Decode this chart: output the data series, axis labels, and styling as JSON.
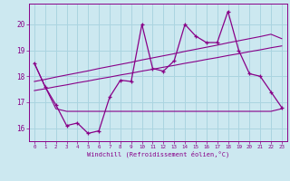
{
  "xlabel": "Windchill (Refroidissement éolien,°C)",
  "background_color": "#cce8f0",
  "grid_color": "#aad4e0",
  "line_color": "#880088",
  "x": [
    0,
    1,
    2,
    3,
    4,
    5,
    6,
    7,
    8,
    9,
    10,
    11,
    12,
    13,
    14,
    15,
    16,
    17,
    18,
    19,
    20,
    21,
    22,
    23
  ],
  "y_main": [
    18.5,
    17.6,
    16.9,
    16.1,
    16.2,
    15.8,
    15.9,
    17.2,
    17.85,
    17.8,
    20.0,
    18.3,
    18.2,
    18.6,
    20.0,
    19.55,
    19.3,
    19.3,
    20.5,
    19.0,
    18.1,
    18.0,
    17.4,
    16.8
  ],
  "y_flat": [
    18.5,
    17.6,
    16.75,
    16.65,
    16.65,
    16.65,
    16.65,
    16.65,
    16.65,
    16.65,
    16.65,
    16.65,
    16.65,
    16.65,
    16.65,
    16.65,
    16.65,
    16.65,
    16.65,
    16.65,
    16.65,
    16.65,
    16.65,
    16.75
  ],
  "y_trend_low": [
    17.45,
    17.52,
    17.6,
    17.67,
    17.75,
    17.82,
    17.9,
    17.97,
    18.05,
    18.12,
    18.2,
    18.27,
    18.35,
    18.42,
    18.5,
    18.57,
    18.65,
    18.72,
    18.8,
    18.87,
    18.95,
    19.02,
    19.1,
    19.17
  ],
  "y_trend_high": [
    17.8,
    17.88,
    17.97,
    18.05,
    18.13,
    18.21,
    18.3,
    18.38,
    18.46,
    18.54,
    18.63,
    18.71,
    18.79,
    18.87,
    18.96,
    19.04,
    19.12,
    19.2,
    19.29,
    19.37,
    19.45,
    19.53,
    19.62,
    19.45
  ],
  "ylim": [
    15.5,
    20.8
  ],
  "yticks": [
    16,
    17,
    18,
    19,
    20
  ],
  "xticks": [
    0,
    1,
    2,
    3,
    4,
    5,
    6,
    7,
    8,
    9,
    10,
    11,
    12,
    13,
    14,
    15,
    16,
    17,
    18,
    19,
    20,
    21,
    22,
    23
  ]
}
